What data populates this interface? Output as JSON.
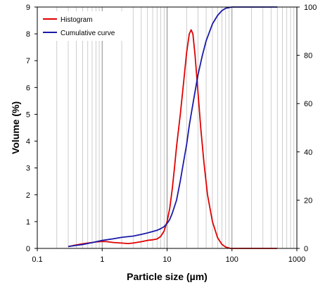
{
  "chart_data": {
    "type": "line",
    "xlabel": "Particle size (µm)",
    "ylabel": "Volume (%)",
    "x_scale": "log",
    "xlim": [
      0.1,
      1000
    ],
    "ylim": [
      0,
      9
    ],
    "y2lim": [
      0,
      100
    ],
    "grid": "vertical-log",
    "legend": "top-left",
    "x_ticks": [
      "0.1",
      "1",
      "10",
      "100",
      "1000"
    ],
    "y_ticks": [
      "0",
      "1",
      "2",
      "3",
      "4",
      "5",
      "6",
      "7",
      "8",
      "9"
    ],
    "y2_ticks": [
      "0",
      "20",
      "40",
      "60",
      "80",
      "100"
    ],
    "series": [
      {
        "name": "Histogram",
        "axis": "left",
        "color": "#e00000",
        "points": [
          [
            0.3,
            0.07
          ],
          [
            0.4,
            0.13
          ],
          [
            0.5,
            0.17
          ],
          [
            0.6,
            0.2
          ],
          [
            0.7,
            0.22
          ],
          [
            0.8,
            0.24
          ],
          [
            0.9,
            0.25
          ],
          [
            1.0,
            0.26
          ],
          [
            1.2,
            0.25
          ],
          [
            1.5,
            0.22
          ],
          [
            2.0,
            0.2
          ],
          [
            2.5,
            0.18
          ],
          [
            3.0,
            0.2
          ],
          [
            4.0,
            0.25
          ],
          [
            5.0,
            0.3
          ],
          [
            6.0,
            0.32
          ],
          [
            7.0,
            0.35
          ],
          [
            8.0,
            0.45
          ],
          [
            9.0,
            0.65
          ],
          [
            10.0,
            1.0
          ],
          [
            11.0,
            1.5
          ],
          [
            12.0,
            2.2
          ],
          [
            13.0,
            3.0
          ],
          [
            14.0,
            3.8
          ],
          [
            16.0,
            5.0
          ],
          [
            18.0,
            6.2
          ],
          [
            20.0,
            7.3
          ],
          [
            22.0,
            8.0
          ],
          [
            23.5,
            8.15
          ],
          [
            25.0,
            8.0
          ],
          [
            27.0,
            7.2
          ],
          [
            30.0,
            5.8
          ],
          [
            33.0,
            4.5
          ],
          [
            37.0,
            3.2
          ],
          [
            42.0,
            2.0
          ],
          [
            50.0,
            1.0
          ],
          [
            60.0,
            0.4
          ],
          [
            70.0,
            0.15
          ],
          [
            80.0,
            0.05
          ],
          [
            95.0,
            0.0
          ],
          [
            200.0,
            0.0
          ],
          [
            500.0,
            0.0
          ]
        ]
      },
      {
        "name": "Cumulative curve",
        "axis": "right",
        "color": "#1a1aaa",
        "points": [
          [
            0.3,
            0.8
          ],
          [
            0.5,
            1.6
          ],
          [
            0.7,
            2.4
          ],
          [
            1.0,
            3.3
          ],
          [
            1.5,
            4.0
          ],
          [
            2.0,
            4.6
          ],
          [
            3.0,
            5.1
          ],
          [
            4.0,
            5.8
          ],
          [
            5.0,
            6.4
          ],
          [
            6.0,
            7.0
          ],
          [
            7.0,
            7.5
          ],
          [
            8.0,
            8.2
          ],
          [
            9.0,
            9.0
          ],
          [
            10.0,
            10.3
          ],
          [
            11.0,
            12.0
          ],
          [
            12.0,
            14.5
          ],
          [
            14.0,
            20.0
          ],
          [
            16.0,
            28.0
          ],
          [
            18.0,
            36.0
          ],
          [
            20.0,
            43.0
          ],
          [
            22.0,
            51.0
          ],
          [
            24.0,
            57.0
          ],
          [
            27.0,
            65.0
          ],
          [
            30.0,
            72.0
          ],
          [
            35.0,
            80.0
          ],
          [
            40.0,
            86.0
          ],
          [
            50.0,
            93.0
          ],
          [
            60.0,
            96.5
          ],
          [
            70.0,
            98.5
          ],
          [
            80.0,
            99.5
          ],
          [
            100.0,
            100.0
          ],
          [
            500.0,
            100.0
          ]
        ]
      }
    ]
  }
}
